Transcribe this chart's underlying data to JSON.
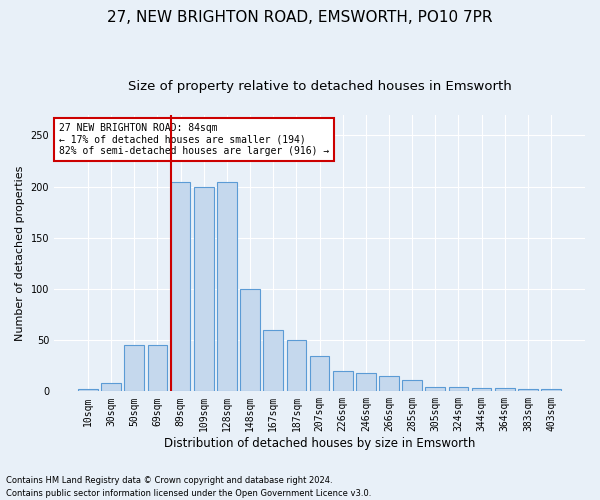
{
  "title": "27, NEW BRIGHTON ROAD, EMSWORTH, PO10 7PR",
  "subtitle": "Size of property relative to detached houses in Emsworth",
  "xlabel": "Distribution of detached houses by size in Emsworth",
  "ylabel": "Number of detached properties",
  "categories": [
    "10sqm",
    "30sqm",
    "50sqm",
    "69sqm",
    "89sqm",
    "109sqm",
    "128sqm",
    "148sqm",
    "167sqm",
    "187sqm",
    "207sqm",
    "226sqm",
    "246sqm",
    "266sqm",
    "285sqm",
    "305sqm",
    "324sqm",
    "344sqm",
    "364sqm",
    "383sqm",
    "403sqm"
  ],
  "values": [
    2,
    8,
    45,
    45,
    205,
    200,
    205,
    100,
    60,
    50,
    35,
    20,
    18,
    15,
    11,
    4,
    4,
    3,
    3,
    2,
    2
  ],
  "bar_color": "#c5d8ed",
  "bar_edge_color": "#5b9bd5",
  "background_color": "#e8f0f8",
  "grid_color": "#ffffff",
  "vline_color": "#cc0000",
  "annotation_text": "27 NEW BRIGHTON ROAD: 84sqm\n← 17% of detached houses are smaller (194)\n82% of semi-detached houses are larger (916) →",
  "annotation_box_color": "#ffffff",
  "annotation_box_edge": "#cc0000",
  "footnote1": "Contains HM Land Registry data © Crown copyright and database right 2024.",
  "footnote2": "Contains public sector information licensed under the Open Government Licence v3.0.",
  "ylim": [
    0,
    270
  ],
  "title_fontsize": 11,
  "subtitle_fontsize": 9.5,
  "ylabel_fontsize": 8,
  "xlabel_fontsize": 8.5,
  "tick_fontsize": 7,
  "annot_fontsize": 7,
  "footnote_fontsize": 6
}
